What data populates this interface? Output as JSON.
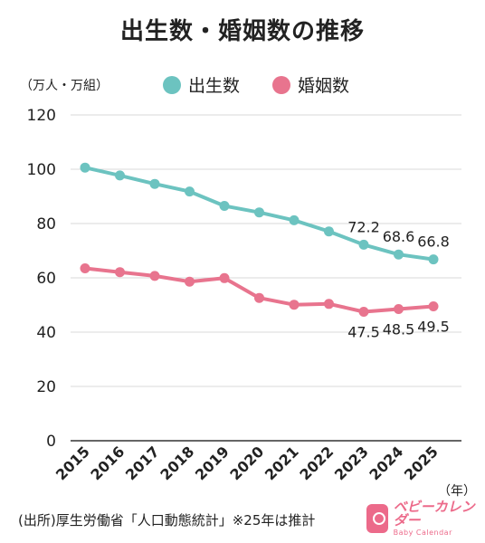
{
  "title": "出生数・婚姻数の推移",
  "unit_label": "（万人・万組）",
  "x_unit_label": "（年）",
  "source": "(出所)厚生労働省「人口動態統計」※25年は推計",
  "logo": {
    "main": "ベビーカレンダー",
    "sub": "Baby Calendar"
  },
  "chart_data": {
    "type": "line",
    "title": "出生数・婚姻数の推移",
    "xlabel": "（年）",
    "ylabel": "（万人・万組）",
    "ylim": [
      0,
      120
    ],
    "yticks": [
      0,
      20,
      40,
      60,
      80,
      100,
      120
    ],
    "grid": true,
    "legend_position": "top",
    "x": [
      2015,
      2016,
      2017,
      2018,
      2019,
      2020,
      2021,
      2022,
      2023,
      2024,
      2025
    ],
    "series": [
      {
        "name": "出生数",
        "color": "#6cc3c0",
        "values": [
          100.6,
          97.7,
          94.6,
          91.8,
          86.5,
          84.1,
          81.2,
          77.1,
          72.2,
          68.6,
          66.8
        ],
        "labels": [
          null,
          null,
          null,
          null,
          null,
          null,
          null,
          null,
          "72.2",
          "68.6",
          "66.8"
        ]
      },
      {
        "name": "婚姻数",
        "color": "#e8748e",
        "values": [
          63.5,
          62.1,
          60.7,
          58.6,
          59.9,
          52.6,
          50.1,
          50.4,
          47.5,
          48.5,
          49.5
        ],
        "labels": [
          null,
          null,
          null,
          null,
          null,
          null,
          null,
          null,
          "47.5",
          "48.5",
          "49.5"
        ]
      }
    ]
  }
}
